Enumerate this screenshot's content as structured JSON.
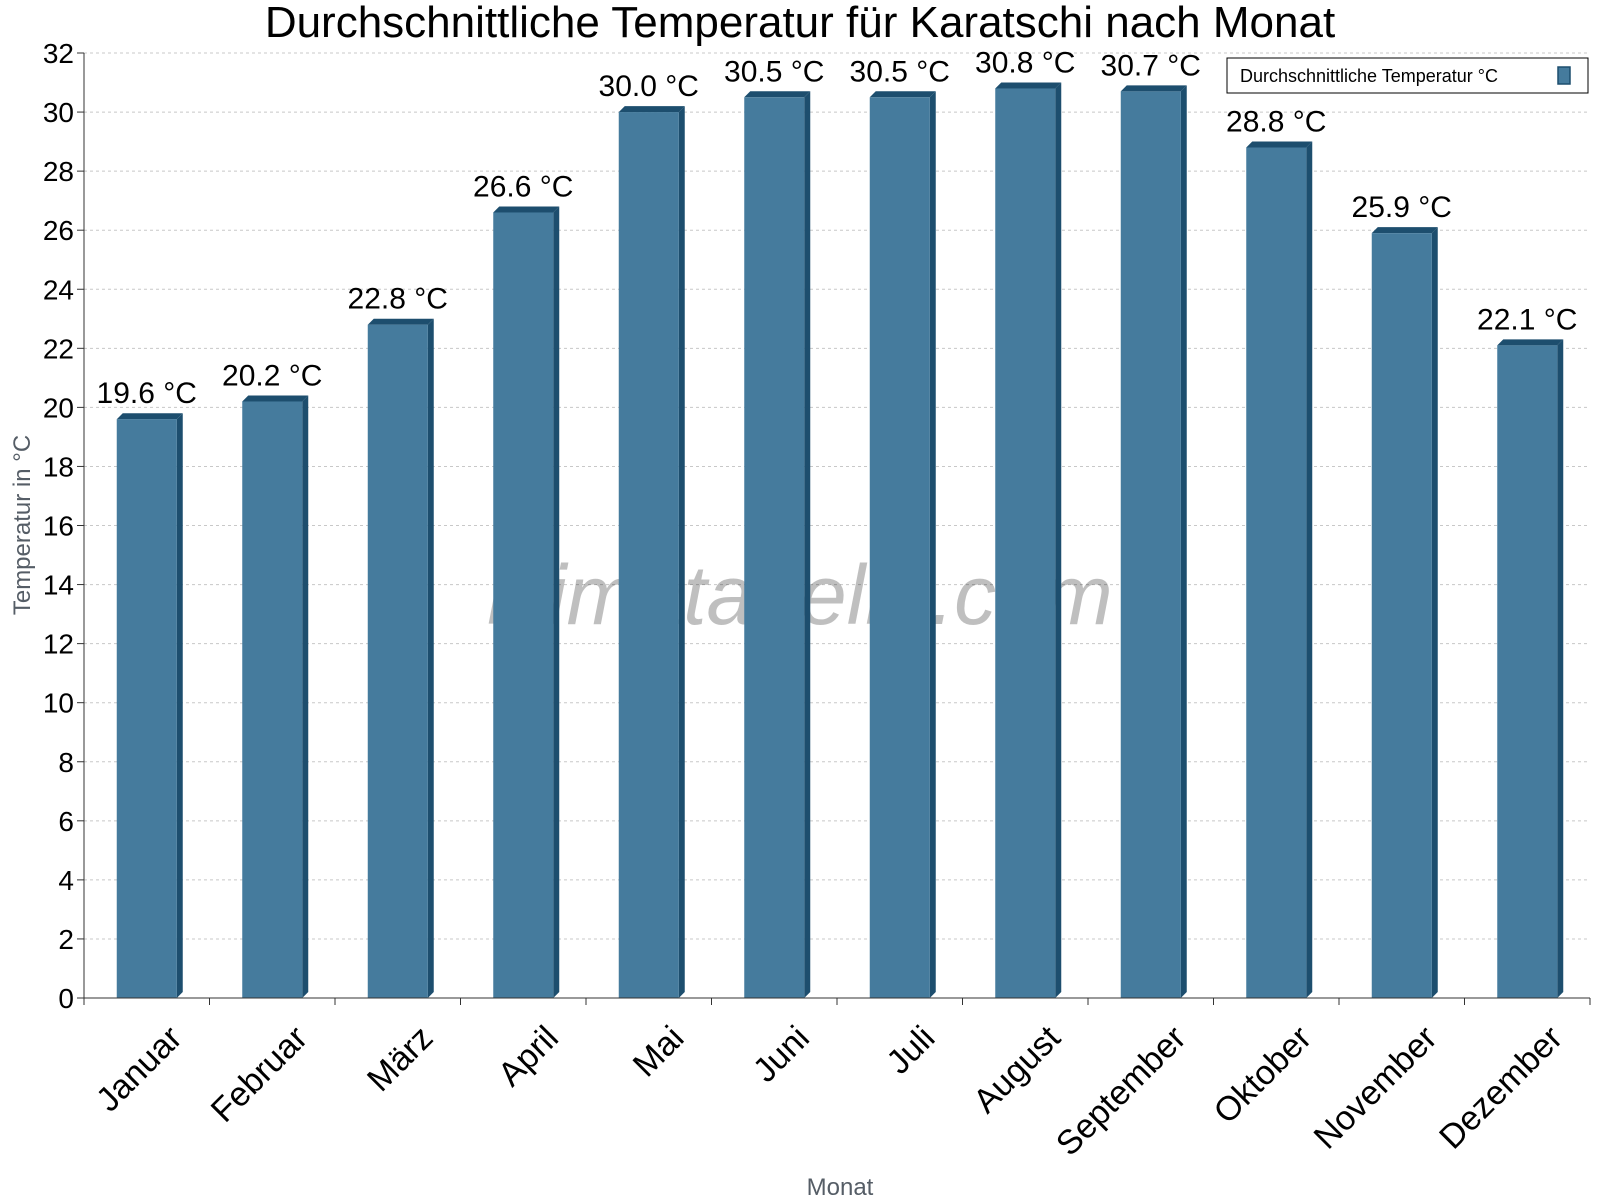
{
  "chart_data": {
    "type": "bar",
    "title": "Durchschnittliche Temperatur für Karatschi nach Monat",
    "xlabel": "Monat",
    "ylabel": "Temperatur in °C",
    "categories": [
      "Januar",
      "Februar",
      "März",
      "April",
      "Mai",
      "Juni",
      "Juli",
      "August",
      "September",
      "Oktober",
      "November",
      "Dezember"
    ],
    "series": [
      {
        "name": "Durchschnittliche Temperatur °C",
        "values": [
          19.6,
          20.2,
          22.8,
          26.6,
          30.0,
          30.5,
          30.5,
          30.8,
          30.7,
          28.8,
          25.9,
          22.1
        ],
        "labels": [
          "19.6 °C",
          "20.2 °C",
          "22.8 °C",
          "26.6 °C",
          "30.0 °C",
          "30.5 °C",
          "30.5 °C",
          "30.8 °C",
          "30.7 °C",
          "28.8 °C",
          "25.9 °C",
          "22.1 °C"
        ],
        "color": "#457b9d",
        "edge_color": "#1d4e6e"
      }
    ],
    "ylim": [
      0,
      32
    ],
    "y_ticks": [
      0,
      2,
      4,
      6,
      8,
      10,
      12,
      14,
      16,
      18,
      20,
      22,
      24,
      26,
      28,
      30,
      32
    ],
    "grid": true,
    "legend_position": "top-right",
    "watermark": "klimatabelle.com"
  }
}
